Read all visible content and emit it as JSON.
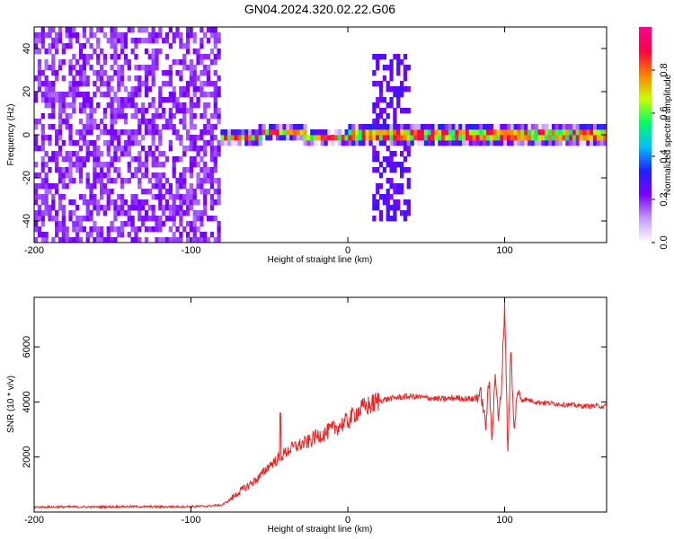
{
  "figure": {
    "title": "GN04.2024.320.02.22.G06"
  },
  "chart_data": [
    {
      "type": "heatmap",
      "xlabel": "Height of straight line (km)",
      "ylabel": "Frequency (Hz)",
      "xlim": [
        -200,
        165
      ],
      "ylim": [
        -50,
        50
      ],
      "x_ticks": [
        -200,
        -100,
        0,
        100
      ],
      "y_ticks": [
        -40,
        -20,
        0,
        20,
        40
      ],
      "grid": false,
      "colorbar": {
        "label": "Normalized spectral amplitude",
        "range": [
          0,
          1
        ],
        "ticks": [
          0.0,
          0.2,
          0.4,
          0.6,
          0.8
        ],
        "tick_labels": [
          "0.0",
          "0.2",
          "0.4",
          "0.6",
          "0.8"
        ],
        "colormap": [
          "#ffffff",
          "#c49bff",
          "#7a00ff",
          "#2020ff",
          "#00c0ff",
          "#00ff60",
          "#c8ff00",
          "#ff8000",
          "#ff0040",
          "#ff0090"
        ]
      },
      "regions": [
        {
          "x_range": [
            -200,
            -82
          ],
          "freq_range": [
            -50,
            50
          ],
          "amplitude": 0.15,
          "description_of_pattern": "broadband noise"
        },
        {
          "x_range": [
            -82,
            165
          ],
          "freq_center": 0,
          "amplitude": 0.95,
          "description_of_pattern": "narrow signal"
        },
        {
          "x_range": [
            15,
            38
          ],
          "freq_range": [
            -40,
            35
          ],
          "amplitude": 0.2,
          "description_of_pattern": "spread"
        }
      ]
    },
    {
      "type": "line",
      "xlabel": "Height of straight line (km)",
      "ylabel": "SNR (10 * v/v)",
      "xlim": [
        -200,
        165
      ],
      "ylim": [
        0,
        7800
      ],
      "x_ticks": [
        -200,
        -100,
        0,
        100
      ],
      "y_ticks": [
        2000,
        4000,
        6000
      ],
      "grid": false,
      "series": [
        {
          "color": "#ee2222",
          "x": [
            -200,
            -180,
            -160,
            -140,
            -120,
            -100,
            -90,
            -80,
            -75,
            -70,
            -65,
            -60,
            -55,
            -50,
            -45,
            -40,
            -35,
            -30,
            -25,
            -20,
            -15,
            -10,
            -5,
            0,
            5,
            10,
            15,
            20,
            25,
            30,
            40,
            50,
            60,
            70,
            80,
            85,
            88,
            90,
            92,
            94,
            96,
            98,
            100,
            102,
            104,
            106,
            108,
            110,
            120,
            130,
            140,
            150,
            160,
            165
          ],
          "y": [
            180,
            190,
            185,
            200,
            190,
            200,
            210,
            260,
            450,
            700,
            900,
            1100,
            1350,
            1700,
            1900,
            2150,
            2350,
            2450,
            2550,
            2750,
            2850,
            3000,
            3150,
            3300,
            3600,
            3800,
            3900,
            4050,
            4100,
            4150,
            4200,
            4150,
            4100,
            4150,
            4100,
            4300,
            3100,
            4800,
            2700,
            5100,
            3300,
            4500,
            7600,
            2200,
            6000,
            2800,
            4400,
            4150,
            4000,
            3950,
            3900,
            3850,
            3850,
            3850
          ]
        }
      ],
      "annotations": [
        {
          "x": -43,
          "y": 3600,
          "text": ""
        },
        {
          "x": 100,
          "y": 7800,
          "text": ""
        }
      ]
    }
  ]
}
